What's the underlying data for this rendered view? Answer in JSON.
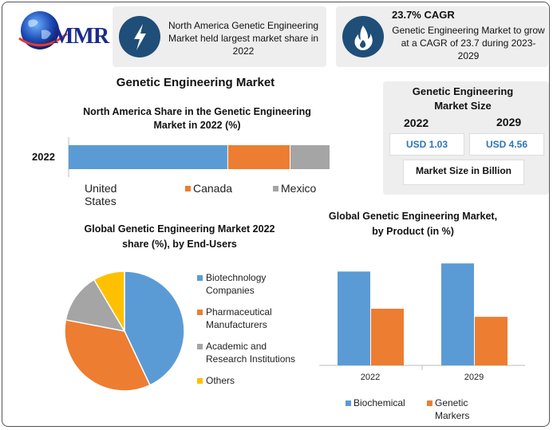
{
  "brand": {
    "logo_text": "MMR"
  },
  "header": {
    "card1": {
      "icon": "lightning-icon",
      "text": "North America Genetic Engineering Market held largest market share in 2022"
    },
    "card2": {
      "icon": "flame-icon",
      "title": "23.7% CAGR",
      "text": "Genetic Engineering Market to grow at a CAGR of 23.7 during 2023-2029"
    }
  },
  "main_title": "Genetic Engineering Market",
  "market_size": {
    "title": "Genetic Engineering Market Size",
    "year1": "2022",
    "year2": "2029",
    "value1": "USD 1.03",
    "value2": "USD 4.56",
    "footer": "Market Size in Billion"
  },
  "colors": {
    "blue": "#5b9bd5",
    "orange": "#ed7d31",
    "gray": "#a5a5a5",
    "yellow": "#ffc000",
    "navy": "#1f4e79"
  },
  "chart_data": [
    {
      "type": "bar",
      "orientation": "horizontal-stacked",
      "title": "North America Share in the Genetic Engineering Market in 2022 (%)",
      "categories": [
        "2022"
      ],
      "series": [
        {
          "name": "United States",
          "values": [
            64
          ]
        },
        {
          "name": "Canada",
          "values": [
            25
          ]
        },
        {
          "name": "Mexico",
          "values": [
            16
          ]
        }
      ],
      "legend": "bottom"
    },
    {
      "type": "pie",
      "title": "Global Genetic Engineering Market 2022 share (%), by End-Users",
      "labels": [
        "Biotechnology Companies",
        "Pharmaceutical Manufacturers",
        "Academic and Research Institutions",
        "Others"
      ],
      "values": [
        43,
        35,
        13.5,
        8.5
      ],
      "legend": "right"
    },
    {
      "type": "bar",
      "title": "Global Genetic Engineering Market, by Product (in %)",
      "categories": [
        "2022",
        "2029"
      ],
      "series": [
        {
          "name": "Biochemical",
          "values": [
            58,
            63
          ]
        },
        {
          "name": "Genetic Markers",
          "values": [
            35,
            30
          ]
        }
      ],
      "ylim": [
        0,
        70
      ],
      "legend": "bottom"
    }
  ]
}
